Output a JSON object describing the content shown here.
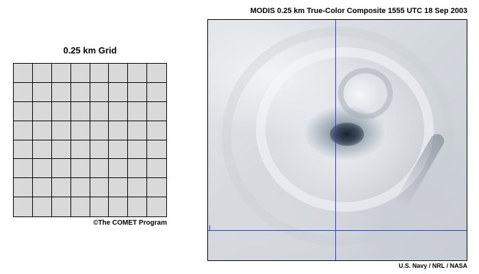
{
  "grid_panel": {
    "title": "0.25 km Grid",
    "rows": 8,
    "columns": 8,
    "cell_color": "#d9d9d9",
    "line_color": "#000000",
    "credit": "©The COMET Program"
  },
  "image_panel": {
    "title": "MODIS 0.25 km True-Color Composite  1555 UTC  18 Sep 2003",
    "credit": "U.S. Navy / NRL / NASA",
    "crosshair_color": "#2a3bd6"
  }
}
